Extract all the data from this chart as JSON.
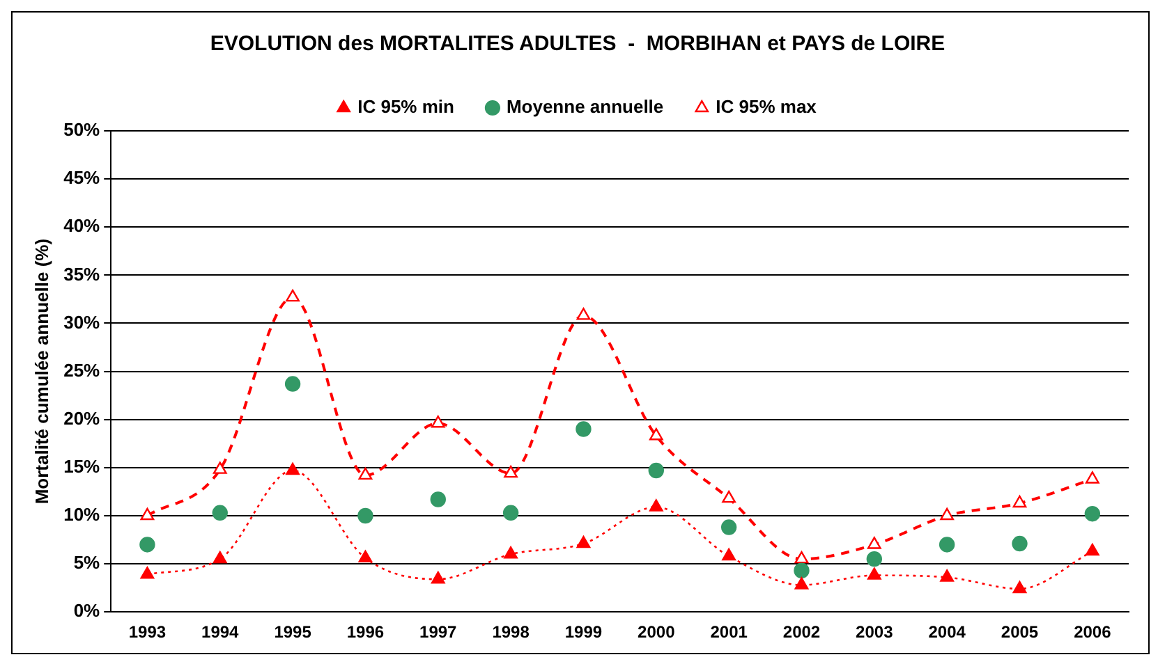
{
  "chart_data": {
    "type": "line",
    "title": "EVOLUTION des MORTALITES ADULTES  -  MORBIHAN et PAYS de LOIRE",
    "ylabel": "Mortalité cumulée annuelle (%)",
    "categories": [
      "1993",
      "1994",
      "1995",
      "1996",
      "1997",
      "1998",
      "1999",
      "2000",
      "2001",
      "2002",
      "2003",
      "2004",
      "2005",
      "2006"
    ],
    "series": [
      {
        "name": "IC 95% min",
        "color": "#ff0000",
        "marker": "triangle",
        "line_style": "dotted",
        "values": [
          3.9,
          5.5,
          14.7,
          5.6,
          3.4,
          6.0,
          7.1,
          10.9,
          5.8,
          2.8,
          3.8,
          3.6,
          2.4,
          6.3
        ]
      },
      {
        "name": "Moyenne annuelle",
        "type": "scatter",
        "color": "#339966",
        "marker": "circle",
        "values": [
          7.0,
          10.3,
          23.7,
          10.0,
          11.7,
          10.3,
          19.0,
          14.7,
          8.8,
          4.3,
          5.5,
          7.0,
          7.1,
          10.2
        ]
      },
      {
        "name": "IC 95% max",
        "color": "#ff0000",
        "marker": "triangle",
        "line_style": "dashed",
        "values": [
          10.0,
          14.8,
          32.7,
          14.2,
          19.6,
          14.4,
          30.8,
          18.3,
          11.8,
          5.5,
          7.0,
          10.0,
          11.3,
          13.8
        ]
      }
    ],
    "ylim": [
      0,
      50
    ],
    "yticks": [
      {
        "value": 0,
        "label": "0%"
      },
      {
        "value": 5,
        "label": "5%"
      },
      {
        "value": 10,
        "label": "10%"
      },
      {
        "value": 15,
        "label": "15%"
      },
      {
        "value": 20,
        "label": "20%"
      },
      {
        "value": 25,
        "label": "25%"
      },
      {
        "value": 30,
        "label": "30%"
      },
      {
        "value": 35,
        "label": "35%"
      },
      {
        "value": 40,
        "label": "40%"
      },
      {
        "value": 45,
        "label": "45%"
      },
      {
        "value": 50,
        "label": "50%"
      }
    ],
    "grid": "y",
    "legend": "top"
  }
}
